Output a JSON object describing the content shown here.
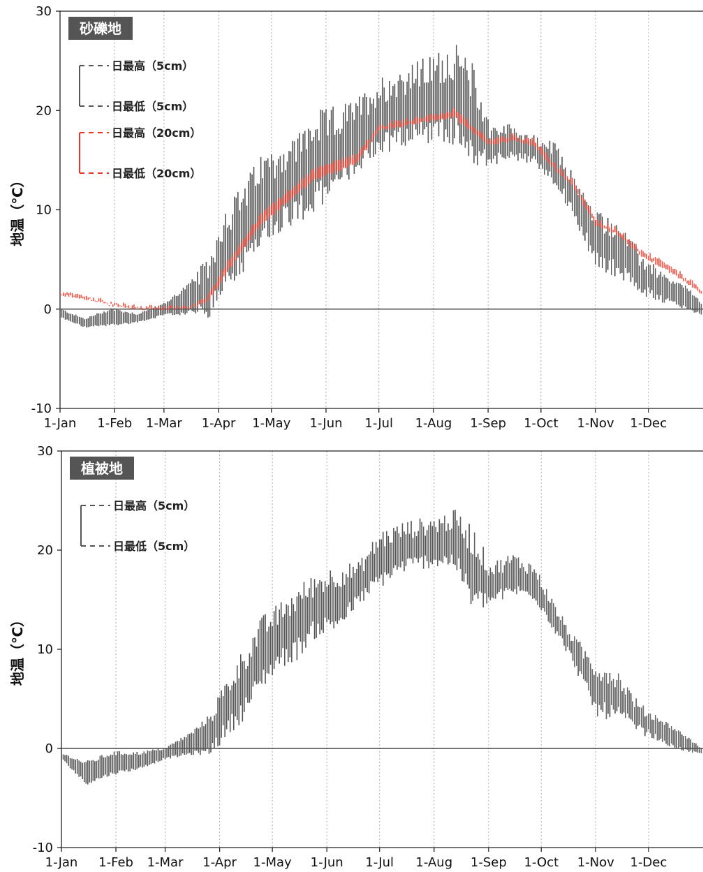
{
  "months": [
    "1-Jan",
    "1-Feb",
    "1-Mar",
    "1-Apr",
    "1-May",
    "1-Jun",
    "1-Jul",
    "1-Aug",
    "1-Sep",
    "1-Oct",
    "1-Nov",
    "1-Dec"
  ],
  "colors": {
    "gray": "#555555",
    "red": "#ee3322",
    "redLight": "#f29580",
    "grid": "#aaaaaa",
    "titleBg": "#555555"
  },
  "chart_data": [
    {
      "type": "line",
      "title": "砂礫地",
      "ylabel": "地温（℃）",
      "xlabel": "",
      "ylim": [
        -10,
        30
      ],
      "yticks": [
        -10,
        0,
        10,
        20,
        30
      ],
      "grid": "vertical dotted lines at month starts",
      "legend_position": "top-left",
      "legend": [
        {
          "name": "日最高（5cm）",
          "color": "#555555",
          "style": "dashed"
        },
        {
          "name": "日最低（5cm）",
          "color": "#555555",
          "style": "dashed"
        },
        {
          "name": "日最高（20cm）",
          "color": "#ee3322",
          "style": "dashed"
        },
        {
          "name": "日最低（20cm）",
          "color": "#ee3322",
          "style": "dashed"
        }
      ],
      "series": [
        {
          "name": "日最高（5cm）",
          "anchors": [
            [
              1,
              0
            ],
            [
              15,
              -1
            ],
            [
              30,
              0
            ],
            [
              45,
              -0.5
            ],
            [
              60,
              0.5
            ],
            [
              75,
              2.5
            ],
            [
              85,
              4
            ],
            [
              95,
              9
            ],
            [
              105,
              11
            ],
            [
              115,
              14
            ],
            [
              125,
              15
            ],
            [
              135,
              16
            ],
            [
              145,
              18
            ],
            [
              160,
              19
            ],
            [
              170,
              20
            ],
            [
              182,
              22
            ],
            [
              196,
              23
            ],
            [
              212,
              24
            ],
            [
              225,
              25
            ],
            [
              235,
              23
            ],
            [
              245,
              18
            ],
            [
              258,
              18
            ],
            [
              270,
              17
            ],
            [
              282,
              16
            ],
            [
              292,
              13
            ],
            [
              305,
              9
            ],
            [
              318,
              8
            ],
            [
              330,
              5
            ],
            [
              345,
              3
            ],
            [
              358,
              2
            ],
            [
              365,
              0.5
            ]
          ]
        },
        {
          "name": "日最低（5cm）",
          "anchors": [
            [
              1,
              -0.8
            ],
            [
              15,
              -1.8
            ],
            [
              30,
              -1.6
            ],
            [
              45,
              -1.3
            ],
            [
              60,
              -0.6
            ],
            [
              75,
              -0.3
            ],
            [
              85,
              -0.2
            ],
            [
              95,
              3
            ],
            [
              105,
              5
            ],
            [
              115,
              8
            ],
            [
              125,
              9
            ],
            [
              135,
              10
            ],
            [
              145,
              11
            ],
            [
              160,
              13
            ],
            [
              170,
              15
            ],
            [
              182,
              16.5
            ],
            [
              196,
              17.5
            ],
            [
              212,
              18
            ],
            [
              225,
              18
            ],
            [
              235,
              16
            ],
            [
              245,
              15
            ],
            [
              258,
              15.5
            ],
            [
              270,
              15
            ],
            [
              282,
              13
            ],
            [
              292,
              10
            ],
            [
              305,
              5
            ],
            [
              318,
              4
            ],
            [
              330,
              2
            ],
            [
              345,
              1
            ],
            [
              358,
              0
            ],
            [
              365,
              -0.5
            ]
          ]
        },
        {
          "name": "日最高（20cm）",
          "anchors": [
            [
              1,
              1.6
            ],
            [
              15,
              1.3
            ],
            [
              30,
              0.6
            ],
            [
              45,
              0.2
            ],
            [
              60,
              0.2
            ],
            [
              75,
              0.3
            ],
            [
              85,
              1.2
            ],
            [
              95,
              4.5
            ],
            [
              105,
              7
            ],
            [
              115,
              9.5
            ],
            [
              125,
              11
            ],
            [
              135,
              12.5
            ],
            [
              145,
              14
            ],
            [
              160,
              15
            ],
            [
              170,
              15.5
            ],
            [
              182,
              18.5
            ],
            [
              196,
              19
            ],
            [
              212,
              19.5
            ],
            [
              225,
              20
            ],
            [
              235,
              18.5
            ],
            [
              245,
              17
            ],
            [
              258,
              17.5
            ],
            [
              270,
              17
            ],
            [
              282,
              14.5
            ],
            [
              292,
              13
            ],
            [
              305,
              9
            ],
            [
              318,
              8
            ],
            [
              330,
              6
            ],
            [
              345,
              4.5
            ],
            [
              358,
              3
            ],
            [
              365,
              1.8
            ]
          ]
        },
        {
          "name": "日最低（20cm）",
          "anchors": [
            [
              1,
              1.4
            ],
            [
              15,
              1.1
            ],
            [
              30,
              0.4
            ],
            [
              45,
              0.0
            ],
            [
              60,
              0.0
            ],
            [
              75,
              0.1
            ],
            [
              85,
              0.8
            ],
            [
              95,
              3.5
            ],
            [
              105,
              6
            ],
            [
              115,
              8.5
            ],
            [
              125,
              10
            ],
            [
              135,
              11.5
            ],
            [
              145,
              13
            ],
            [
              160,
              14
            ],
            [
              170,
              14.8
            ],
            [
              182,
              18
            ],
            [
              196,
              18.5
            ],
            [
              212,
              19
            ],
            [
              225,
              19.3
            ],
            [
              235,
              17.8
            ],
            [
              245,
              16.5
            ],
            [
              258,
              17
            ],
            [
              270,
              16.5
            ],
            [
              282,
              14
            ],
            [
              292,
              12.5
            ],
            [
              305,
              8.5
            ],
            [
              318,
              7.5
            ],
            [
              330,
              5.5
            ],
            [
              345,
              4
            ],
            [
              358,
              2.5
            ],
            [
              365,
              1.5
            ]
          ]
        }
      ]
    },
    {
      "type": "line",
      "title": "植被地",
      "ylabel": "地温（℃）",
      "xlabel": "",
      "ylim": [
        -10,
        30
      ],
      "yticks": [
        -10,
        0,
        10,
        20,
        30
      ],
      "grid": "vertical dotted lines at month starts",
      "legend_position": "top-left",
      "legend": [
        {
          "name": "日最高（5cm）",
          "color": "#555555",
          "style": "dashed"
        },
        {
          "name": "日最低（5cm）",
          "color": "#555555",
          "style": "dashed"
        }
      ],
      "series": [
        {
          "name": "日最高（5cm）",
          "anchors": [
            [
              1,
              -0.5
            ],
            [
              15,
              -1.5
            ],
            [
              30,
              -0.5
            ],
            [
              45,
              -0.5
            ],
            [
              60,
              0
            ],
            [
              75,
              1.5
            ],
            [
              85,
              3
            ],
            [
              95,
              6
            ],
            [
              105,
              9
            ],
            [
              115,
              12
            ],
            [
              125,
              13.5
            ],
            [
              135,
              15
            ],
            [
              145,
              16.5
            ],
            [
              160,
              17.5
            ],
            [
              170,
              18
            ],
            [
              182,
              21
            ],
            [
              196,
              22
            ],
            [
              212,
              22.5
            ],
            [
              225,
              23
            ],
            [
              235,
              21
            ],
            [
              245,
              18
            ],
            [
              258,
              19
            ],
            [
              270,
              18
            ],
            [
              282,
              14
            ],
            [
              292,
              11
            ],
            [
              305,
              8
            ],
            [
              318,
              7
            ],
            [
              330,
              4
            ],
            [
              345,
              2.5
            ],
            [
              358,
              1
            ],
            [
              365,
              0
            ]
          ]
        },
        {
          "name": "日最低（5cm）",
          "anchors": [
            [
              1,
              -1
            ],
            [
              15,
              -3.5
            ],
            [
              30,
              -2.5
            ],
            [
              45,
              -2
            ],
            [
              60,
              -1
            ],
            [
              75,
              -0.5
            ],
            [
              85,
              -0.3
            ],
            [
              95,
              2
            ],
            [
              105,
              4
            ],
            [
              115,
              7
            ],
            [
              125,
              9
            ],
            [
              135,
              10
            ],
            [
              145,
              12
            ],
            [
              160,
              13
            ],
            [
              170,
              15
            ],
            [
              182,
              17
            ],
            [
              196,
              18.5
            ],
            [
              212,
              19
            ],
            [
              225,
              19
            ],
            [
              235,
              15
            ],
            [
              245,
              15
            ],
            [
              258,
              16
            ],
            [
              270,
              15.5
            ],
            [
              282,
              12
            ],
            [
              292,
              9
            ],
            [
              305,
              4
            ],
            [
              318,
              3.5
            ],
            [
              330,
              2
            ],
            [
              345,
              0.5
            ],
            [
              358,
              -0.3
            ],
            [
              365,
              -0.5
            ]
          ]
        }
      ]
    }
  ]
}
